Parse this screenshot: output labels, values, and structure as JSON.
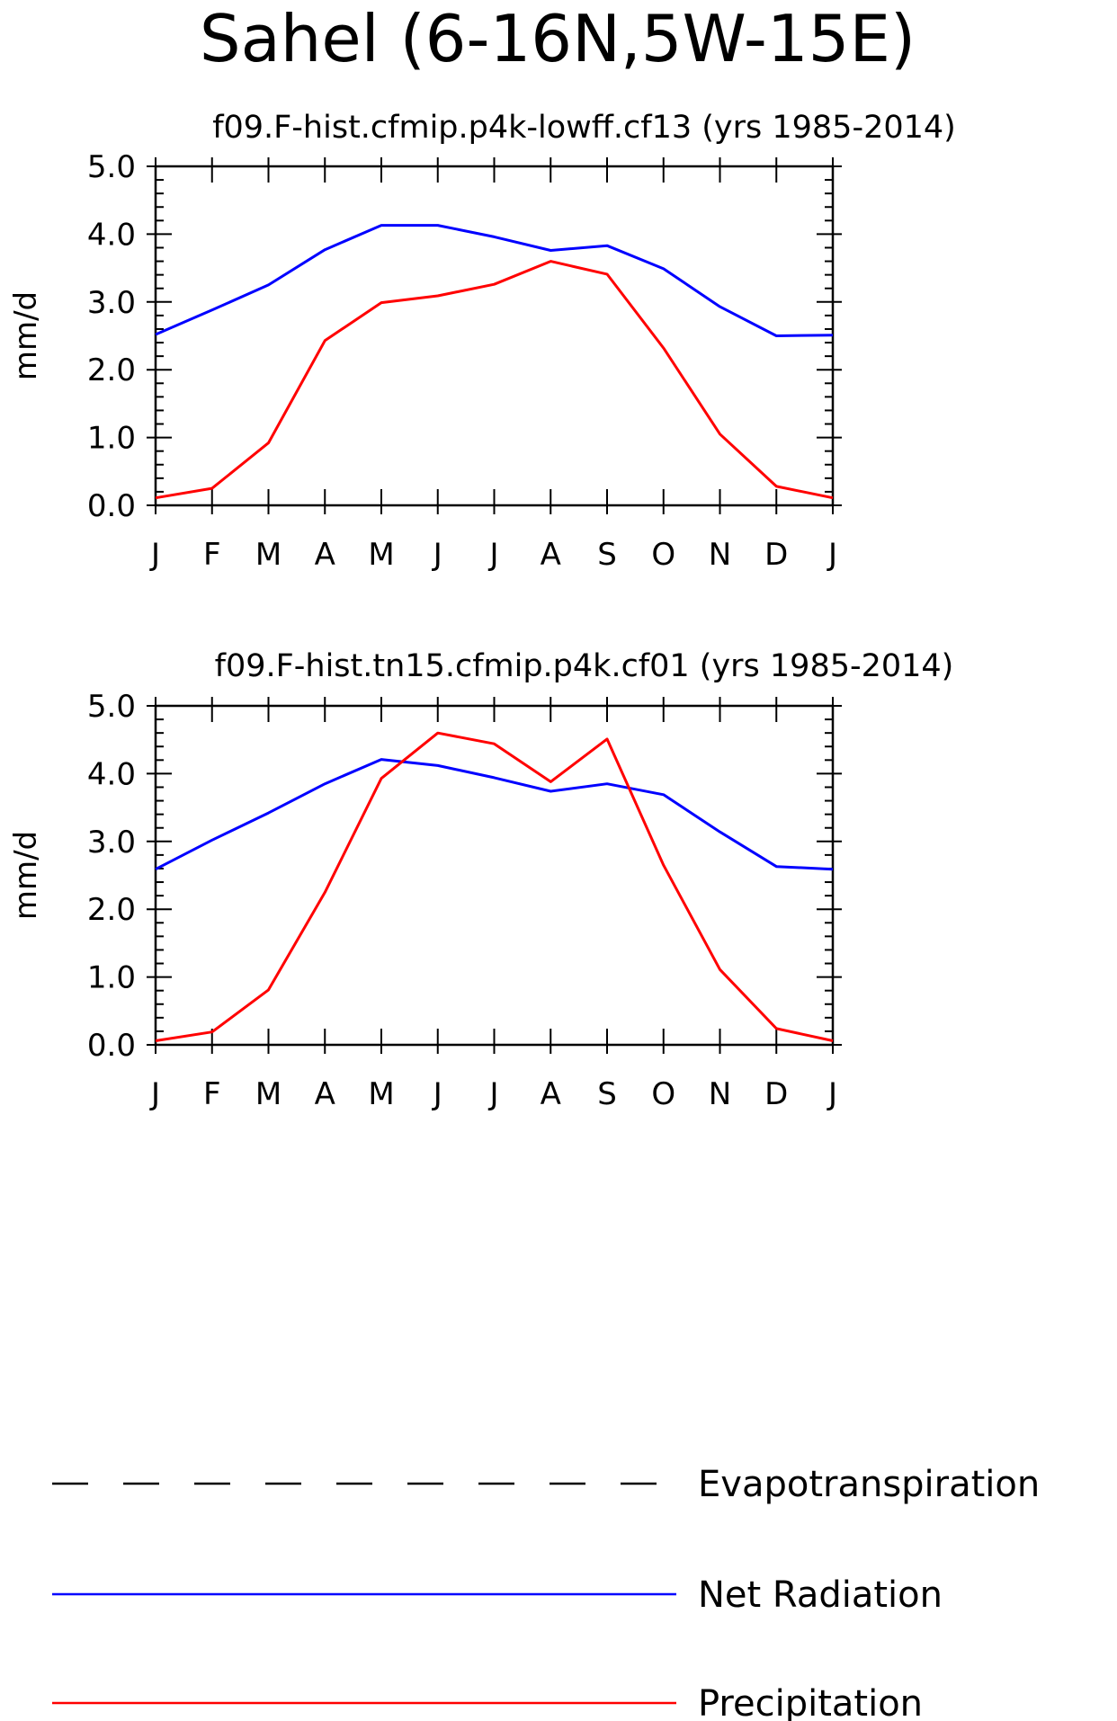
{
  "figure": {
    "title": "Sahel (6-16N,5W-15E)"
  },
  "colors": {
    "net_radiation": "#0000ff",
    "precipitation": "#ff0000",
    "evapotranspiration": "#000000"
  },
  "legend": {
    "items": [
      {
        "label": "Evapotranspiration",
        "style": "dashed",
        "color": "#000000"
      },
      {
        "label": "Net Radiation",
        "style": "solid",
        "color": "#0000ff"
      },
      {
        "label": "Precipitation",
        "style": "solid",
        "color": "#ff0000"
      }
    ]
  },
  "chart_data": [
    {
      "type": "line",
      "title": "f09.F-hist.cfmip.p4k-lowff.cf13 (yrs 1985-2014)",
      "xlabel": "",
      "ylabel": "mm/d",
      "ylim": [
        0,
        5
      ],
      "yticks": [
        "0.0",
        "1.0",
        "2.0",
        "3.0",
        "4.0",
        "5.0"
      ],
      "categories": [
        "J",
        "F",
        "M",
        "A",
        "M",
        "J",
        "J",
        "A",
        "S",
        "O",
        "N",
        "D",
        "J"
      ],
      "grid": false,
      "series": [
        {
          "name": "Net Radiation",
          "color": "#0000ff",
          "values": [
            2.52,
            2.88,
            3.25,
            3.77,
            4.13,
            4.13,
            3.96,
            3.76,
            3.83,
            3.49,
            2.93,
            2.5,
            2.51
          ]
        },
        {
          "name": "Precipitation",
          "color": "#ff0000",
          "values": [
            0.11,
            0.25,
            0.92,
            2.43,
            2.99,
            3.09,
            3.26,
            3.6,
            3.41,
            2.32,
            1.05,
            0.28,
            0.11
          ]
        }
      ]
    },
    {
      "type": "line",
      "title": "f09.F-hist.tn15.cfmip.p4k.cf01 (yrs 1985-2014)",
      "xlabel": "",
      "ylabel": "mm/d",
      "ylim": [
        0,
        5
      ],
      "yticks": [
        "0.0",
        "1.0",
        "2.0",
        "3.0",
        "4.0",
        "5.0"
      ],
      "categories": [
        "J",
        "F",
        "M",
        "A",
        "M",
        "J",
        "J",
        "A",
        "S",
        "O",
        "N",
        "D",
        "J"
      ],
      "grid": false,
      "series": [
        {
          "name": "Net Radiation",
          "color": "#0000ff",
          "values": [
            2.59,
            3.02,
            3.42,
            3.85,
            4.21,
            4.12,
            3.94,
            3.74,
            3.85,
            3.69,
            3.14,
            2.63,
            2.59
          ]
        },
        {
          "name": "Precipitation",
          "color": "#ff0000",
          "values": [
            0.06,
            0.19,
            0.81,
            2.25,
            3.93,
            4.6,
            4.44,
            3.88,
            4.51,
            2.65,
            1.11,
            0.24,
            0.06
          ]
        }
      ]
    }
  ]
}
